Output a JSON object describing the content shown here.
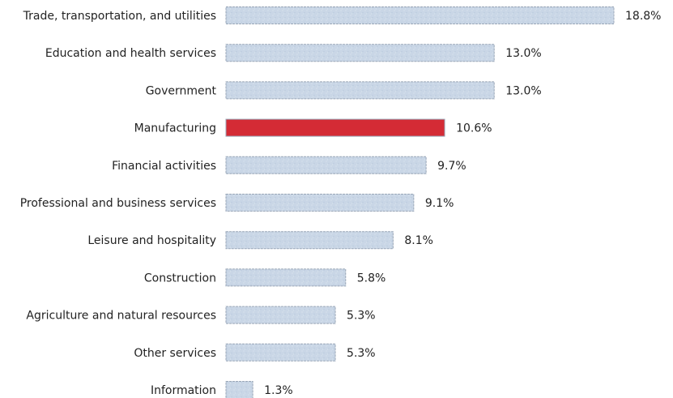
{
  "chart_data": {
    "type": "bar",
    "orientation": "horizontal",
    "categories": [
      "Trade, transportation, and utilities",
      "Education and health services",
      "Government",
      "Manufacturing",
      "Financial activities",
      "Professional and business services",
      "Leisure and hospitality",
      "Construction",
      "Agriculture and natural resources",
      "Other services",
      "Information"
    ],
    "values": [
      18.8,
      13.0,
      13.0,
      10.6,
      9.7,
      9.1,
      8.1,
      5.8,
      5.3,
      5.3,
      1.3
    ],
    "data_labels": [
      "18.8%",
      "13.0%",
      "13.0%",
      "10.6%",
      "9.7%",
      "9.1%",
      "8.1%",
      "5.8%",
      "5.3%",
      "5.3%",
      "1.3%"
    ],
    "highlight_category": "Manufacturing",
    "title": "",
    "xlabel": "",
    "ylabel": "",
    "xlim": [
      0,
      18.8
    ],
    "grid": false,
    "legend": "none",
    "colors": {
      "bar": "#c9d6e6",
      "bar_edge": "#9aa7b8",
      "highlight": "#d42b35",
      "highlight_edge": "#b51f28",
      "text": "#222222"
    }
  }
}
